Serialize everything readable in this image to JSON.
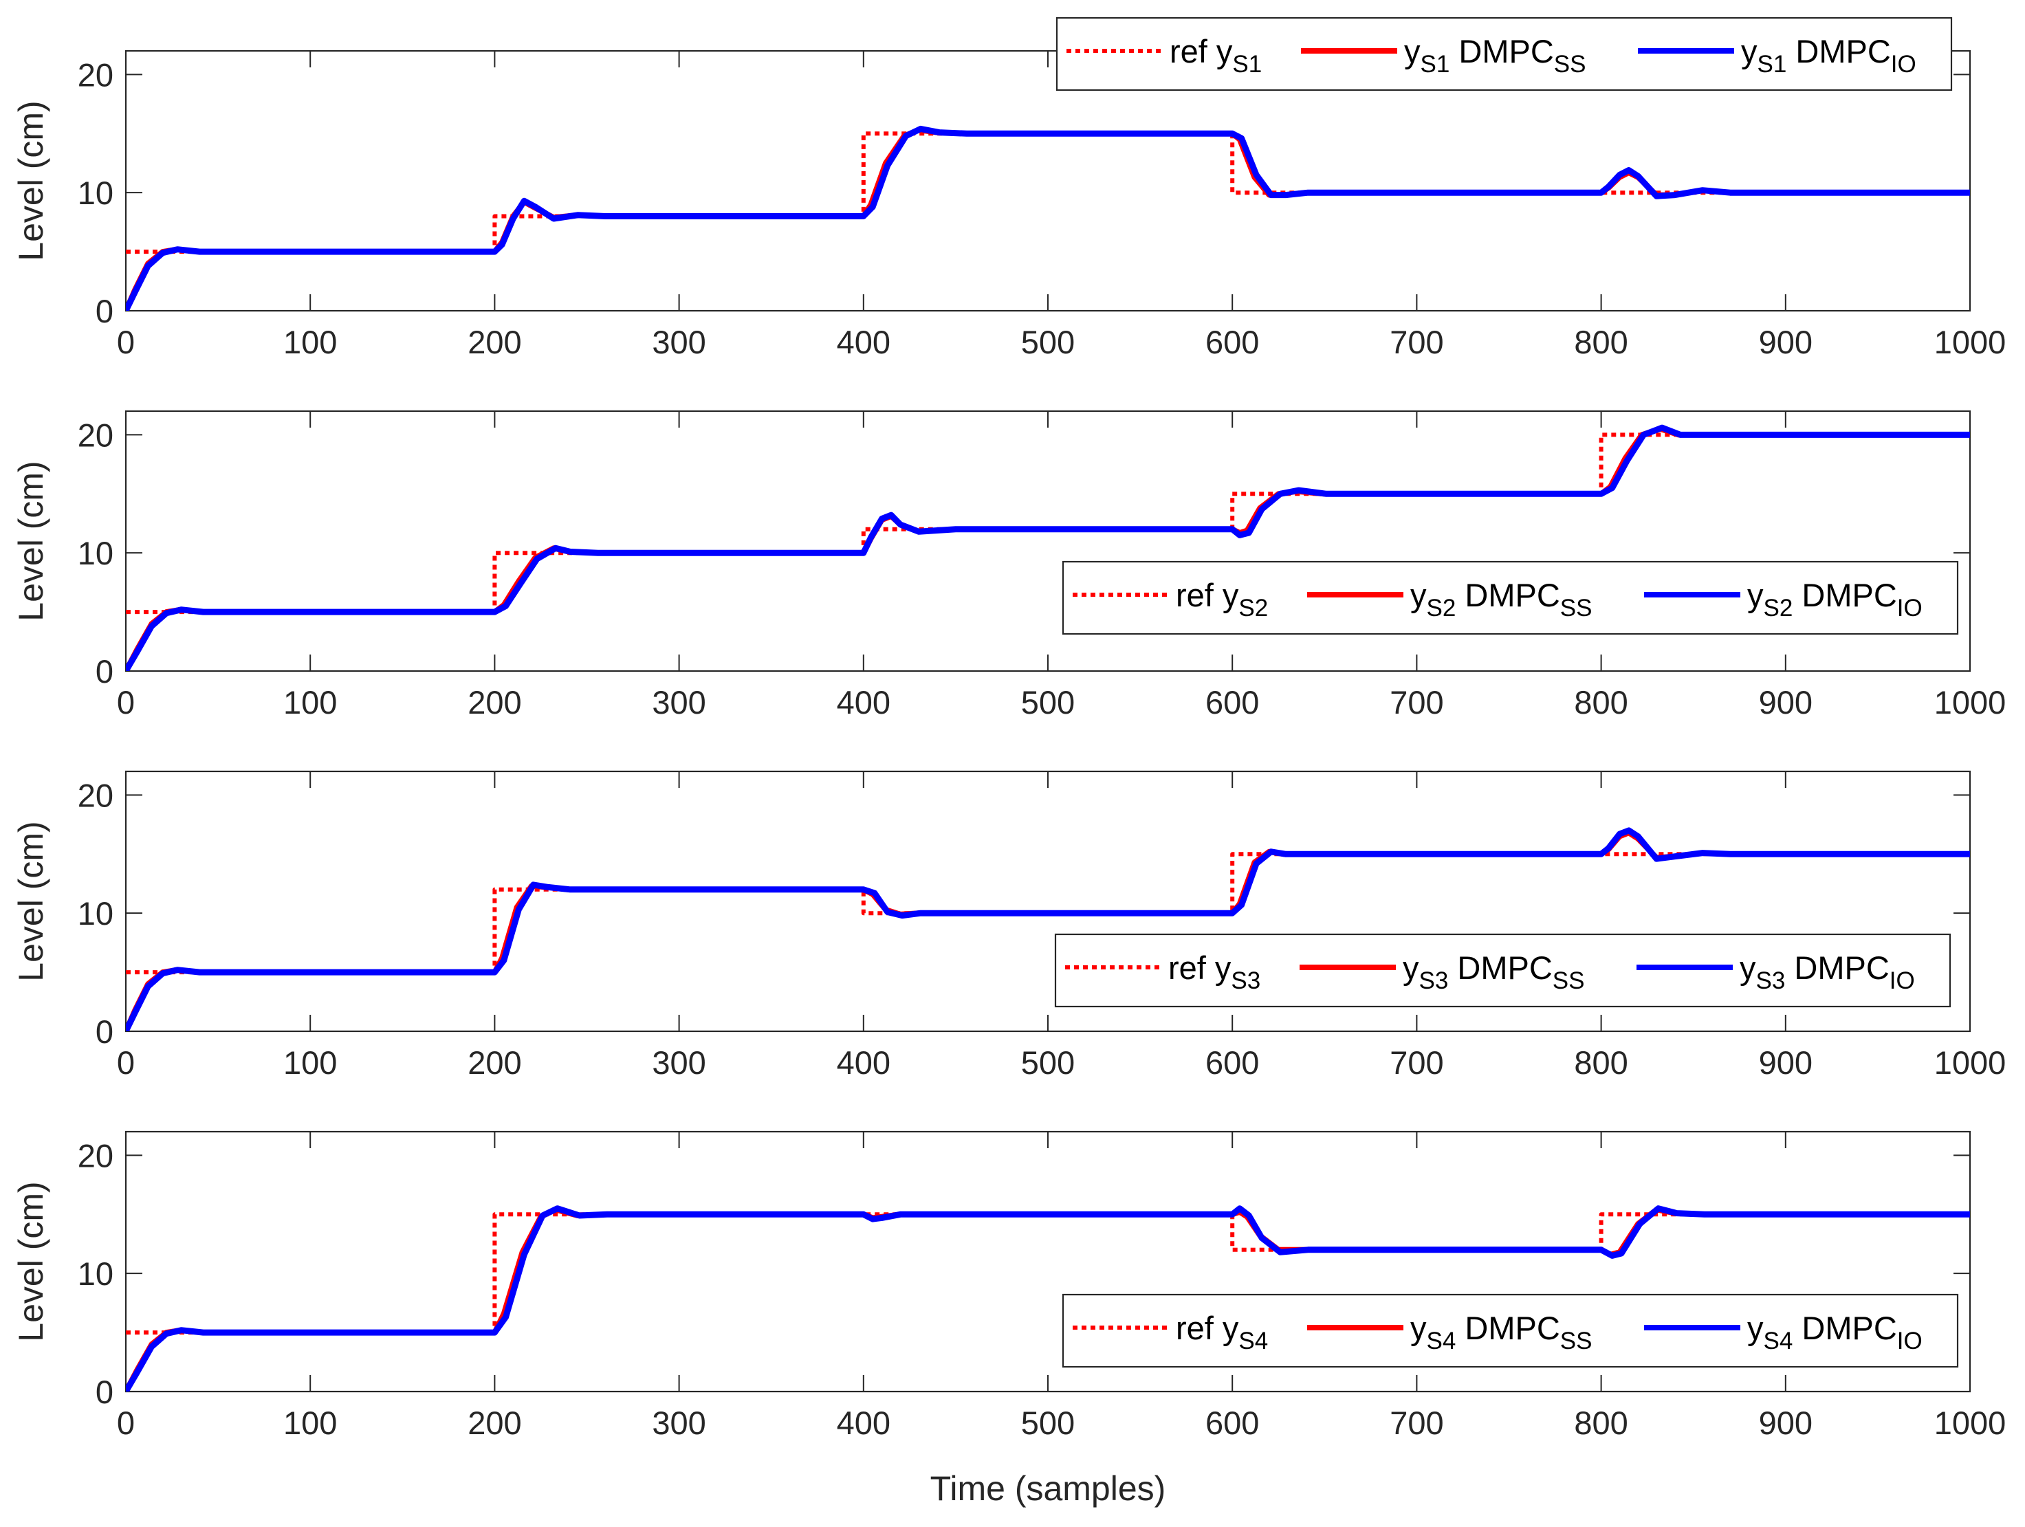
{
  "figure": {
    "xlabel": "Time (samples)"
  },
  "colors": {
    "ref": "#ff0000",
    "ss": "#ff0000",
    "io": "#0000ff",
    "axis": "#262626"
  },
  "chart_data": [
    {
      "type": "line",
      "ylabel": "Level (cm)",
      "xlim": [
        0,
        1000
      ],
      "ylim": [
        0,
        22
      ],
      "xticks": [
        0,
        100,
        200,
        300,
        400,
        500,
        600,
        700,
        800,
        900,
        1000
      ],
      "yticks": [
        0,
        10,
        20
      ],
      "legend_position": "top-right",
      "legend": [
        {
          "pre": "ref y",
          "sub": "S1",
          "post": "",
          "post_sub": ""
        },
        {
          "pre": "y",
          "sub": "S1",
          "post": " DMPC",
          "post_sub": "SS"
        },
        {
          "pre": "y",
          "sub": "S1",
          "post": " DMPC",
          "post_sub": "IO"
        }
      ],
      "series": [
        {
          "name": "ref yS1",
          "style": "dotted",
          "color": "#ff0000",
          "x": [
            0,
            200,
            200,
            400,
            400,
            600,
            600,
            800,
            800,
            1000
          ],
          "y": [
            5,
            5,
            8,
            8,
            15,
            15,
            10,
            10,
            10,
            10
          ]
        },
        {
          "name": "yS1 DMPCSS",
          "style": "solid",
          "color": "#ff0000",
          "x": [
            0,
            5,
            12,
            20,
            28,
            40,
            200,
            204,
            210,
            216,
            222,
            232,
            245,
            260,
            400,
            404,
            412,
            422,
            430,
            440,
            455,
            600,
            604,
            612,
            620,
            628,
            640,
            800,
            804,
            810,
            815,
            820,
            830,
            840,
            855,
            870,
            1000
          ],
          "y": [
            0,
            1.8,
            4,
            5,
            5.2,
            5,
            5,
            5.8,
            8,
            9.2,
            8.7,
            7.9,
            8.1,
            8,
            8,
            9,
            12.5,
            14.8,
            15.3,
            15.1,
            15,
            15,
            14.5,
            11.3,
            9.8,
            9.8,
            10,
            10,
            10.4,
            11.3,
            11.7,
            11.3,
            9.8,
            9.8,
            10.2,
            10,
            10
          ]
        },
        {
          "name": "yS1 DMPCIO",
          "style": "solid",
          "color": "#0000ff",
          "x": [
            0,
            5,
            12,
            20,
            28,
            40,
            200,
            204,
            210,
            216,
            222,
            232,
            245,
            260,
            400,
            405,
            413,
            423,
            431,
            441,
            456,
            600,
            605,
            613,
            621,
            629,
            641,
            800,
            804,
            810,
            815,
            820,
            830,
            840,
            855,
            870,
            1000
          ],
          "y": [
            0,
            1.6,
            3.8,
            4.9,
            5.2,
            5,
            5,
            5.6,
            7.8,
            9.3,
            8.8,
            7.8,
            8.1,
            8,
            8,
            8.8,
            12.3,
            14.8,
            15.4,
            15.1,
            15,
            15,
            14.6,
            11.5,
            9.8,
            9.8,
            10,
            10,
            10.5,
            11.5,
            11.9,
            11.4,
            9.7,
            9.8,
            10.2,
            10,
            10
          ]
        }
      ]
    },
    {
      "type": "line",
      "ylabel": "Level (cm)",
      "xlim": [
        0,
        1000
      ],
      "ylim": [
        0,
        22
      ],
      "xticks": [
        0,
        100,
        200,
        300,
        400,
        500,
        600,
        700,
        800,
        900,
        1000
      ],
      "yticks": [
        0,
        10,
        20
      ],
      "legend_position": "middle-right",
      "legend": [
        {
          "pre": "ref y",
          "sub": "S2",
          "post": "",
          "post_sub": ""
        },
        {
          "pre": "y",
          "sub": "S2",
          "post": " DMPC",
          "post_sub": "SS"
        },
        {
          "pre": "y",
          "sub": "S2",
          "post": " DMPC",
          "post_sub": "IO"
        }
      ],
      "series": [
        {
          "name": "ref yS2",
          "style": "dotted",
          "color": "#ff0000",
          "x": [
            0,
            200,
            200,
            400,
            400,
            600,
            600,
            800,
            800,
            1000
          ],
          "y": [
            5,
            5,
            10,
            10,
            12,
            12,
            15,
            15,
            20,
            20
          ]
        },
        {
          "name": "yS2 DMPCSS",
          "style": "solid",
          "color": "#ff0000",
          "x": [
            0,
            6,
            14,
            22,
            30,
            42,
            200,
            205,
            213,
            222,
            232,
            240,
            255,
            400,
            404,
            410,
            415,
            420,
            430,
            450,
            600,
            604,
            608,
            615,
            625,
            635,
            650,
            800,
            805,
            813,
            822,
            832,
            842,
            860,
            1000
          ],
          "y": [
            0,
            1.8,
            4,
            5,
            5.2,
            5,
            5,
            5.6,
            7.6,
            9.6,
            10.4,
            10.1,
            10,
            10,
            11.2,
            12.8,
            13.1,
            12.4,
            11.8,
            12,
            12,
            11.7,
            11.9,
            13.8,
            15,
            15.2,
            15,
            15,
            15.6,
            18,
            20,
            20.5,
            20,
            20,
            20
          ]
        },
        {
          "name": "yS2 DMPCIO",
          "style": "solid",
          "color": "#0000ff",
          "x": [
            0,
            6,
            14,
            22,
            30,
            42,
            200,
            206,
            214,
            223,
            233,
            241,
            256,
            400,
            404,
            410,
            415,
            420,
            430,
            450,
            600,
            604,
            609,
            616,
            626,
            636,
            651,
            800,
            806,
            814,
            823,
            833,
            843,
            861,
            1000
          ],
          "y": [
            0,
            1.6,
            3.8,
            4.9,
            5.2,
            5,
            5,
            5.5,
            7.4,
            9.5,
            10.4,
            10.1,
            10,
            10,
            11.3,
            12.9,
            13.2,
            12.4,
            11.8,
            12,
            12,
            11.5,
            11.7,
            13.7,
            15,
            15.3,
            15,
            15,
            15.5,
            17.8,
            20,
            20.6,
            20,
            20,
            20
          ]
        }
      ]
    },
    {
      "type": "line",
      "ylabel": "Level (cm)",
      "xlim": [
        0,
        1000
      ],
      "ylim": [
        0,
        22
      ],
      "xticks": [
        0,
        100,
        200,
        300,
        400,
        500,
        600,
        700,
        800,
        900,
        1000
      ],
      "yticks": [
        0,
        10,
        20
      ],
      "legend_position": "middle-right",
      "legend": [
        {
          "pre": "ref y",
          "sub": "S3",
          "post": "",
          "post_sub": ""
        },
        {
          "pre": "y",
          "sub": "S3",
          "post": " DMPC",
          "post_sub": "SS"
        },
        {
          "pre": "y",
          "sub": "S3",
          "post": " DMPC",
          "post_sub": "IO"
        }
      ],
      "series": [
        {
          "name": "ref yS3",
          "style": "dotted",
          "color": "#ff0000",
          "x": [
            0,
            200,
            200,
            400,
            400,
            600,
            600,
            800,
            800,
            1000
          ],
          "y": [
            5,
            5,
            12,
            12,
            10,
            10,
            15,
            15,
            15,
            15
          ]
        },
        {
          "name": "yS3 DMPCSS",
          "style": "solid",
          "color": "#ff0000",
          "x": [
            0,
            5,
            12,
            20,
            28,
            40,
            200,
            204,
            212,
            220,
            228,
            240,
            400,
            405,
            412,
            420,
            430,
            445,
            600,
            604,
            612,
            620,
            628,
            640,
            800,
            804,
            810,
            815,
            820,
            830,
            840,
            855,
            870,
            1000
          ],
          "y": [
            0,
            1.8,
            4,
            5,
            5.2,
            5,
            5,
            6.2,
            10.5,
            12.3,
            12.2,
            12,
            12,
            11.6,
            10.3,
            9.9,
            10,
            10,
            10,
            10.8,
            14.3,
            15.2,
            15,
            15,
            15,
            15.4,
            16.5,
            16.8,
            16.3,
            14.7,
            14.8,
            15.1,
            15,
            15
          ]
        },
        {
          "name": "yS3 DMPCIO",
          "style": "solid",
          "color": "#0000ff",
          "x": [
            0,
            5,
            12,
            20,
            28,
            40,
            200,
            205,
            213,
            221,
            229,
            241,
            400,
            406,
            413,
            421,
            431,
            446,
            600,
            605,
            613,
            621,
            629,
            641,
            800,
            804,
            810,
            815,
            820,
            830,
            840,
            855,
            870,
            1000
          ],
          "y": [
            0,
            1.6,
            3.8,
            4.9,
            5.2,
            5,
            5,
            6,
            10.3,
            12.4,
            12.2,
            12,
            12,
            11.7,
            10.1,
            9.8,
            10,
            10,
            10,
            10.7,
            14.2,
            15.2,
            15,
            15,
            15,
            15.5,
            16.7,
            17,
            16.5,
            14.6,
            14.8,
            15.1,
            15,
            15
          ]
        }
      ]
    },
    {
      "type": "line",
      "ylabel": "Level (cm)",
      "xlim": [
        0,
        1000
      ],
      "ylim": [
        0,
        22
      ],
      "xticks": [
        0,
        100,
        200,
        300,
        400,
        500,
        600,
        700,
        800,
        900,
        1000
      ],
      "yticks": [
        0,
        10,
        20
      ],
      "legend_position": "middle-right",
      "legend": [
        {
          "pre": "ref y",
          "sub": "S4",
          "post": "",
          "post_sub": ""
        },
        {
          "pre": "y",
          "sub": "S4",
          "post": " DMPC",
          "post_sub": "SS"
        },
        {
          "pre": "y",
          "sub": "S4",
          "post": " DMPC",
          "post_sub": "IO"
        }
      ],
      "series": [
        {
          "name": "ref yS4",
          "style": "dotted",
          "color": "#ff0000",
          "x": [
            0,
            200,
            200,
            400,
            400,
            600,
            600,
            800,
            800,
            1000
          ],
          "y": [
            5,
            5,
            15,
            15,
            15,
            15,
            12,
            12,
            15,
            15
          ]
        },
        {
          "name": "yS4 DMPCSS",
          "style": "solid",
          "color": "#ff0000",
          "x": [
            0,
            6,
            14,
            22,
            30,
            42,
            200,
            205,
            215,
            225,
            233,
            245,
            260,
            400,
            405,
            410,
            420,
            440,
            600,
            604,
            608,
            615,
            625,
            640,
            800,
            805,
            810,
            820,
            830,
            840,
            855,
            1000
          ],
          "y": [
            0,
            1.8,
            4,
            5,
            5.2,
            5,
            5,
            6.6,
            11.8,
            14.8,
            15.4,
            14.9,
            15,
            15,
            14.7,
            14.8,
            15,
            15,
            15,
            15.2,
            14.8,
            13.2,
            12,
            12,
            12,
            11.6,
            11.8,
            14.2,
            15.4,
            15.1,
            15,
            15
          ]
        },
        {
          "name": "yS4 DMPCIO",
          "style": "solid",
          "color": "#0000ff",
          "x": [
            0,
            6,
            14,
            22,
            30,
            42,
            200,
            206,
            216,
            226,
            234,
            246,
            261,
            400,
            405,
            410,
            420,
            440,
            600,
            604,
            609,
            616,
            626,
            641,
            800,
            806,
            811,
            821,
            831,
            841,
            856,
            1000
          ],
          "y": [
            0,
            1.6,
            3.8,
            4.9,
            5.2,
            5,
            5,
            6.3,
            11.6,
            14.9,
            15.5,
            14.9,
            15,
            15,
            14.6,
            14.7,
            15,
            15,
            15,
            15.5,
            14.9,
            13,
            11.8,
            12,
            12,
            11.5,
            11.7,
            14.2,
            15.5,
            15.1,
            15,
            15
          ]
        }
      ]
    }
  ]
}
